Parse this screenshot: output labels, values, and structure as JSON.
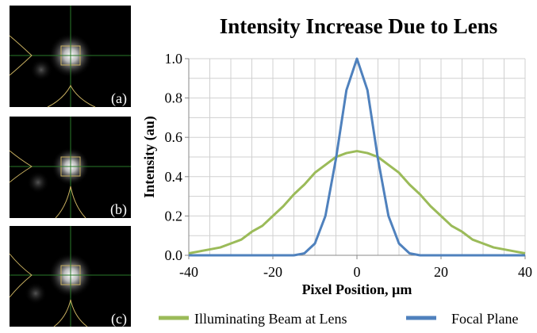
{
  "panels": [
    {
      "label": "(a)"
    },
    {
      "label": "(b)"
    },
    {
      "label": "(c)"
    }
  ],
  "chart_data": {
    "type": "line",
    "title": "Intensity Increase Due to Lens",
    "x_label": "Pixel Position, µm",
    "y_label": "Intensity (au)",
    "x": [
      -40,
      -37.5,
      -35,
      -32.5,
      -30,
      -27.5,
      -25,
      -22.5,
      -20,
      -17.5,
      -15,
      -12.5,
      -10,
      -7.5,
      -5,
      -2.5,
      0,
      2.5,
      5,
      7.5,
      10,
      12.5,
      15,
      17.5,
      20,
      22.5,
      25,
      27.5,
      30,
      32.5,
      35,
      37.5,
      40
    ],
    "series": [
      {
        "name": "Illuminating Beam at Lens",
        "color": "#9bbb59",
        "values": [
          0.01,
          0.02,
          0.03,
          0.04,
          0.06,
          0.08,
          0.12,
          0.15,
          0.2,
          0.25,
          0.31,
          0.36,
          0.42,
          0.46,
          0.5,
          0.52,
          0.53,
          0.52,
          0.5,
          0.46,
          0.42,
          0.36,
          0.31,
          0.25,
          0.2,
          0.15,
          0.12,
          0.08,
          0.06,
          0.04,
          0.03,
          0.02,
          0.01
        ]
      },
      {
        "name": "Focal Plane",
        "color": "#4f81bd",
        "values": [
          0,
          0,
          0,
          0,
          0,
          0,
          0,
          0,
          0,
          0,
          0,
          0.01,
          0.06,
          0.2,
          0.49,
          0.84,
          1.0,
          0.84,
          0.49,
          0.2,
          0.06,
          0.01,
          0,
          0,
          0,
          0,
          0,
          0,
          0,
          0,
          0,
          0,
          0
        ]
      }
    ],
    "xlim": [
      -40,
      40
    ],
    "ylim": [
      0,
      1
    ],
    "xticks": [
      -40,
      -20,
      0,
      20,
      40
    ],
    "yticks": [
      {
        "value": 0,
        "label": "0.0"
      },
      0.2,
      0.4,
      0.6,
      0.8,
      {
        "value": 1,
        "label": "1.0"
      }
    ],
    "xgrid": [
      -40,
      -35,
      -30,
      -25,
      -20,
      -15,
      -10,
      -5,
      0,
      5,
      10,
      15,
      20,
      25,
      30,
      35,
      40
    ],
    "ygrid": [
      0,
      0.1,
      0.2,
      0.3,
      0.4,
      0.5,
      0.6,
      0.7,
      0.8,
      0.9,
      1
    ],
    "legend": "bottom"
  }
}
